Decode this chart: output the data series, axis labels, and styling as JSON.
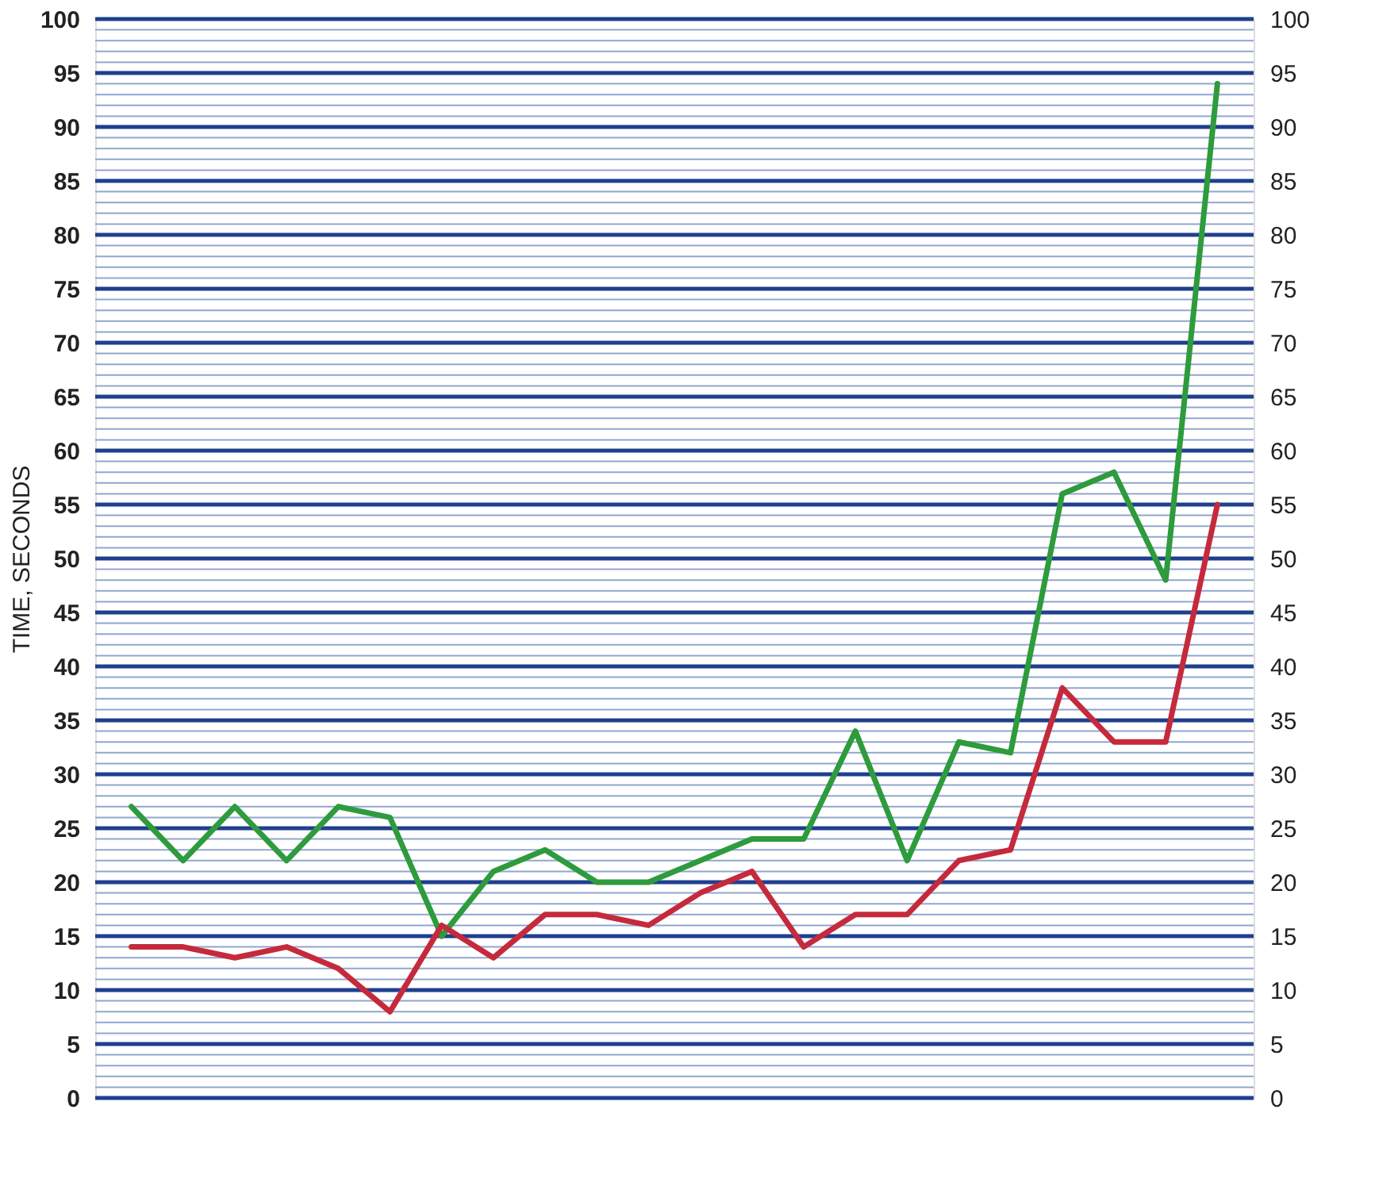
{
  "chart_data": {
    "type": "line",
    "ylabel": "TIME, SECONDS",
    "categories": [
      null,
      null,
      null,
      null,
      null,
      null,
      null,
      null,
      null,
      null,
      null,
      null,
      null,
      null,
      null,
      null,
      null,
      null,
      null,
      null,
      null,
      null
    ],
    "series": [
      {
        "color": "#2e9b3c",
        "values": [
          27,
          22,
          27,
          22,
          27,
          26,
          15,
          21,
          23,
          20,
          20,
          22,
          24,
          24,
          34,
          22,
          33,
          32,
          56,
          58,
          48,
          94
        ]
      },
      {
        "color": "#c52a3c",
        "values": [
          14,
          14,
          13,
          14,
          12,
          8,
          16,
          13,
          17,
          17,
          16,
          19,
          21,
          14,
          17,
          17,
          22,
          23,
          38,
          33,
          33,
          55
        ]
      }
    ],
    "ylim": [
      0,
      100
    ],
    "yticks": [
      0,
      {
        "value": 1,
        "label": null
      },
      {
        "value": 2,
        "label": null
      },
      {
        "value": 3,
        "label": null
      },
      {
        "value": 4,
        "label": null
      },
      5,
      {
        "value": 6,
        "label": null
      },
      {
        "value": 7,
        "label": null
      },
      {
        "value": 8,
        "label": null
      },
      {
        "value": 9,
        "label": null
      },
      10,
      {
        "value": 11,
        "label": null
      },
      {
        "value": 12,
        "label": null
      },
      {
        "value": 13,
        "label": null
      },
      {
        "value": 14,
        "label": null
      },
      15,
      {
        "value": 16,
        "label": null
      },
      {
        "value": 17,
        "label": null
      },
      {
        "value": 18,
        "label": null
      },
      {
        "value": 19,
        "label": null
      },
      20,
      {
        "value": 21,
        "label": null
      },
      {
        "value": 22,
        "label": null
      },
      {
        "value": 23,
        "label": null
      },
      {
        "value": 24,
        "label": null
      },
      25,
      {
        "value": 26,
        "label": null
      },
      {
        "value": 27,
        "label": null
      },
      {
        "value": 28,
        "label": null
      },
      {
        "value": 29,
        "label": null
      },
      30,
      {
        "value": 31,
        "label": null
      },
      {
        "value": 32,
        "label": null
      },
      {
        "value": 33,
        "label": null
      },
      {
        "value": 34,
        "label": null
      },
      35,
      {
        "value": 36,
        "label": null
      },
      {
        "value": 37,
        "label": null
      },
      {
        "value": 38,
        "label": null
      },
      {
        "value": 39,
        "label": null
      },
      40,
      {
        "value": 41,
        "label": null
      },
      {
        "value": 42,
        "label": null
      },
      {
        "value": 43,
        "label": null
      },
      {
        "value": 44,
        "label": null
      },
      45,
      {
        "value": 46,
        "label": null
      },
      {
        "value": 47,
        "label": null
      },
      {
        "value": 48,
        "label": null
      },
      {
        "value": 49,
        "label": null
      },
      50,
      {
        "value": 51,
        "label": null
      },
      {
        "value": 52,
        "label": null
      },
      {
        "value": 53,
        "label": null
      },
      {
        "value": 54,
        "label": null
      },
      55,
      {
        "value": 56,
        "label": null
      },
      {
        "value": 57,
        "label": null
      },
      {
        "value": 58,
        "label": null
      },
      {
        "value": 59,
        "label": null
      },
      60,
      {
        "value": 61,
        "label": null
      },
      {
        "value": 62,
        "label": null
      },
      {
        "value": 63,
        "label": null
      },
      {
        "value": 64,
        "label": null
      },
      65,
      {
        "value": 66,
        "label": null
      },
      {
        "value": 67,
        "label": null
      },
      {
        "value": 68,
        "label": null
      },
      {
        "value": 69,
        "label": null
      },
      70,
      {
        "value": 71,
        "label": null
      },
      {
        "value": 72,
        "label": null
      },
      {
        "value": 73,
        "label": null
      },
      {
        "value": 74,
        "label": null
      },
      75,
      {
        "value": 76,
        "label": null
      },
      {
        "value": 77,
        "label": null
      },
      {
        "value": 78,
        "label": null
      },
      {
        "value": 79,
        "label": null
      },
      80,
      {
        "value": 81,
        "label": null
      },
      {
        "value": 82,
        "label": null
      },
      {
        "value": 83,
        "label": null
      },
      {
        "value": 84,
        "label": null
      },
      85,
      {
        "value": 86,
        "label": null
      },
      {
        "value": 87,
        "label": null
      },
      {
        "value": 88,
        "label": null
      },
      {
        "value": 89,
        "label": null
      },
      90,
      {
        "value": 91,
        "label": null
      },
      {
        "value": 92,
        "label": null
      },
      {
        "value": 93,
        "label": null
      },
      {
        "value": 94,
        "label": null
      },
      95,
      {
        "value": 96,
        "label": null
      },
      {
        "value": 97,
        "label": null
      },
      {
        "value": 98,
        "label": null
      },
      {
        "value": 99,
        "label": null
      },
      100
    ],
    "y2lim": [
      0,
      100
    ],
    "y2ticks": [
      0,
      5,
      10,
      15,
      20,
      25,
      30,
      35,
      40,
      45,
      50,
      55,
      60,
      65,
      70,
      75,
      80,
      85,
      90,
      95,
      100
    ],
    "grid": "y",
    "legend": false,
    "tick_labels": "y",
    "marker": "none",
    "line_style": "solid"
  }
}
